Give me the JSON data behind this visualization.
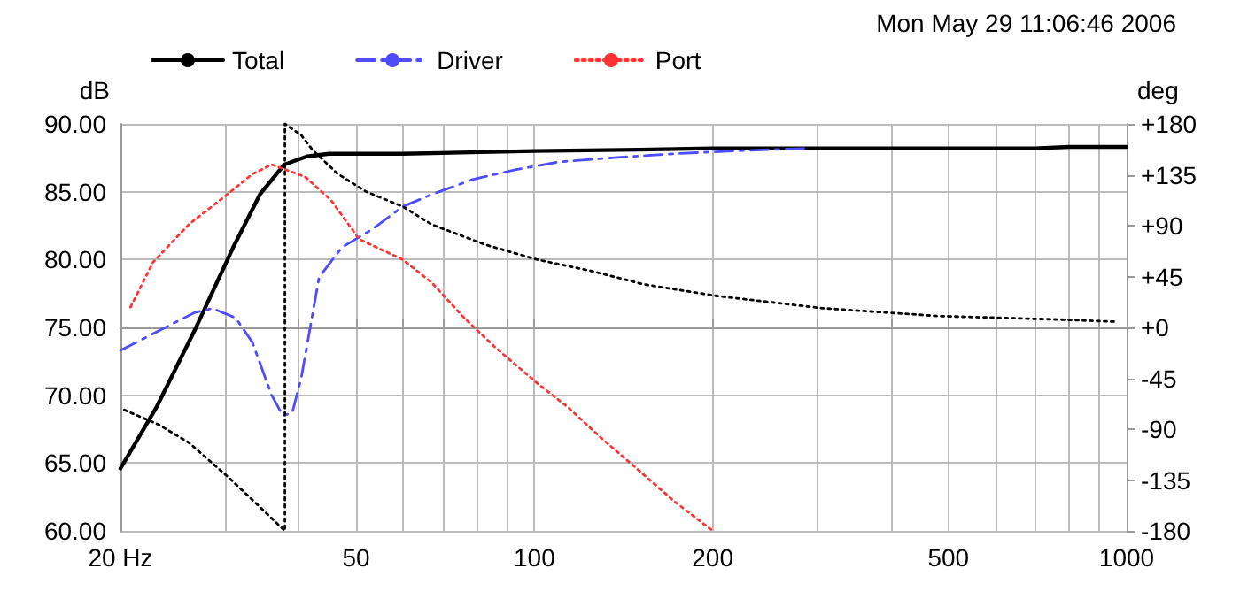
{
  "chart_data": {
    "type": "line",
    "ylabel": "dB",
    "y2label": "deg",
    "log": "x",
    "grid": true,
    "legend": "top left",
    "marker": "none",
    "annotations": [
      "Mon May 29 11:06:46 2006"
    ],
    "xlim": [
      20,
      1000
    ],
    "xticks": [
      {
        "value": 20,
        "label": "20 Hz"
      },
      {
        "value": 30,
        "label": null
      },
      {
        "value": 40,
        "label": null
      },
      50,
      {
        "value": 60,
        "label": null
      },
      {
        "value": 70,
        "label": null
      },
      {
        "value": 80,
        "label": null
      },
      {
        "value": 90,
        "label": null
      },
      100,
      200,
      {
        "value": 300,
        "label": null
      },
      {
        "value": 400,
        "label": null
      },
      500,
      {
        "value": 600,
        "label": null
      },
      {
        "value": 700,
        "label": null
      },
      {
        "value": 800,
        "label": null
      },
      {
        "value": 900,
        "label": null
      },
      1000
    ],
    "ylim": [
      60,
      90
    ],
    "yticks": [
      {
        "value": 60,
        "label": "60.00"
      },
      {
        "value": 65,
        "label": "65.00"
      },
      {
        "value": 70,
        "label": "70.00"
      },
      {
        "value": 75,
        "label": "75.00"
      },
      {
        "value": 80,
        "label": "80.00"
      },
      {
        "value": 85,
        "label": "85.00"
      },
      {
        "value": 90,
        "label": "90.00"
      }
    ],
    "y2lim": [
      -180,
      180
    ],
    "y2ticks": [
      {
        "value": -180,
        "label": "-180"
      },
      {
        "value": -135,
        "label": "-135"
      },
      {
        "value": -90,
        "label": "-90"
      },
      {
        "value": -45,
        "label": "-45"
      },
      {
        "value": 0,
        "label": "+0"
      },
      {
        "value": 45,
        "label": "+45"
      },
      {
        "value": 90,
        "label": "+90"
      },
      {
        "value": 135,
        "label": "+135"
      },
      {
        "value": 180,
        "label": "+180"
      }
    ],
    "series": [
      {
        "name": "Total",
        "color": "#000000",
        "line_style": "solid",
        "x": [
          20,
          23,
          26.7,
          31,
          34.4,
          37.8,
          41.3,
          45,
          60,
          100,
          150,
          200,
          300,
          500,
          700,
          800,
          1000
        ],
        "values": [
          64.6,
          69.1,
          74.8,
          80.9,
          84.8,
          87.0,
          87.6,
          87.8,
          87.8,
          88.0,
          88.1,
          88.2,
          88.2,
          88.2,
          88.2,
          88.3,
          88.3
        ]
      },
      {
        "name": "Driver",
        "color": "#4d4dff",
        "line_style": "dashdot",
        "x": [
          20,
          26.7,
          28.6,
          31.3,
          33.4,
          36,
          37.6,
          39,
          40.4,
          43.3,
          47.3,
          53.1,
          59.9,
          67.1,
          78.6,
          92.4,
          110,
          135,
          172,
          216,
          290
        ],
        "values": [
          73.3,
          76.1,
          76.4,
          75.7,
          73.9,
          70.0,
          68.5,
          68.7,
          71.3,
          78.7,
          80.9,
          82.2,
          83.9,
          84.8,
          85.9,
          86.6,
          87.2,
          87.5,
          87.8,
          88.0,
          88.2
        ]
      },
      {
        "name": "Port",
        "color": "#ff3333",
        "line_style": "dotted",
        "x": [
          20.8,
          22.7,
          26.1,
          29.9,
          33.4,
          36,
          41,
          45.3,
          50.6,
          59.9,
          67.1,
          76.1,
          86,
          101,
          114,
          130,
          147,
          172,
          200
        ],
        "values": [
          76.5,
          79.8,
          82.6,
          84.6,
          86.3,
          87.0,
          86.1,
          84.4,
          81.5,
          80.0,
          78.3,
          75.7,
          73.5,
          70.9,
          69.1,
          66.8,
          64.8,
          62.2,
          60.0
        ]
      },
      {
        "color": "#000000",
        "line_style": "dotted",
        "axis": "y2",
        "x": [
          20.3,
          23.2,
          26.1,
          30.5,
          34.1,
          37.9,
          37.9,
          40.4,
          42.2,
          46.5,
          52,
          59.9,
          67.1,
          82.8,
          101,
          124.5,
          153,
          202,
          306,
          482,
          762,
          963
        ],
        "values": [
          -73,
          -86,
          -102,
          -133,
          -157,
          -180,
          180,
          170,
          157,
          136,
          120,
          107,
          91,
          73,
          60,
          50,
          38,
          28,
          17,
          10,
          7,
          5
        ]
      }
    ]
  }
}
